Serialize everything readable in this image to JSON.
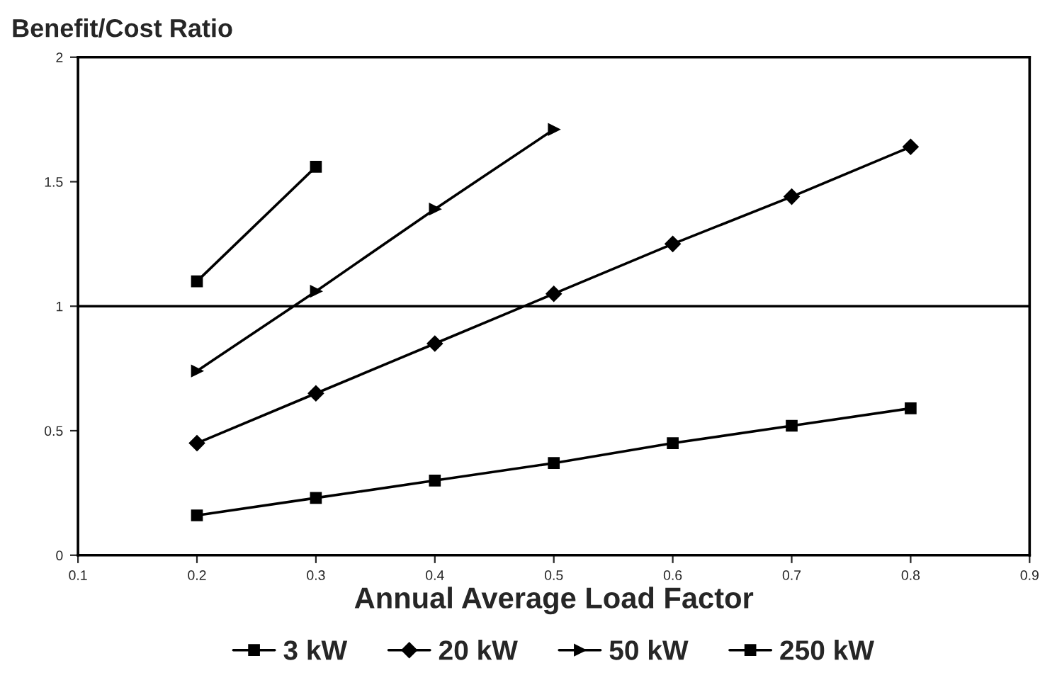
{
  "chart_data": {
    "type": "line",
    "ylabel": "Benefit/Cost Ratio",
    "xlabel": "Annual Average Load Factor",
    "xlim": [
      0.1,
      0.9
    ],
    "xticks": [
      0.1,
      0.2,
      0.3,
      0.4,
      0.5,
      0.6,
      0.7,
      0.8,
      0.9
    ],
    "ylim": [
      0,
      2
    ],
    "yticks": [
      0,
      0.5,
      1,
      1.5,
      2
    ],
    "grid": false,
    "legend": "bottom",
    "ref_lines": [
      {
        "axis": "y",
        "value": 1,
        "color": "#000000"
      }
    ],
    "series": [
      {
        "name": "3 kW",
        "color": "#000000",
        "marker": "square",
        "x": [
          0.2,
          0.3,
          0.4,
          0.5,
          0.6,
          0.7,
          0.8
        ],
        "values": [
          0.16,
          0.23,
          0.3,
          0.37,
          0.45,
          0.52,
          0.59
        ]
      },
      {
        "name": "20 kW",
        "color": "#000000",
        "marker": "diamond",
        "x": [
          0.2,
          0.3,
          0.4,
          0.5,
          0.6,
          0.7,
          0.8
        ],
        "values": [
          0.45,
          0.65,
          0.85,
          1.05,
          1.25,
          1.44,
          1.64
        ]
      },
      {
        "name": "50 kW",
        "color": "#000000",
        "marker": "triangle",
        "x": [
          0.2,
          0.3,
          0.4,
          0.5
        ],
        "values": [
          0.74,
          1.06,
          1.39,
          1.71
        ]
      },
      {
        "name": "250 kW",
        "color": "#000000",
        "marker": "square",
        "x": [
          0.2,
          0.3
        ],
        "values": [
          1.1,
          1.56
        ]
      }
    ]
  }
}
